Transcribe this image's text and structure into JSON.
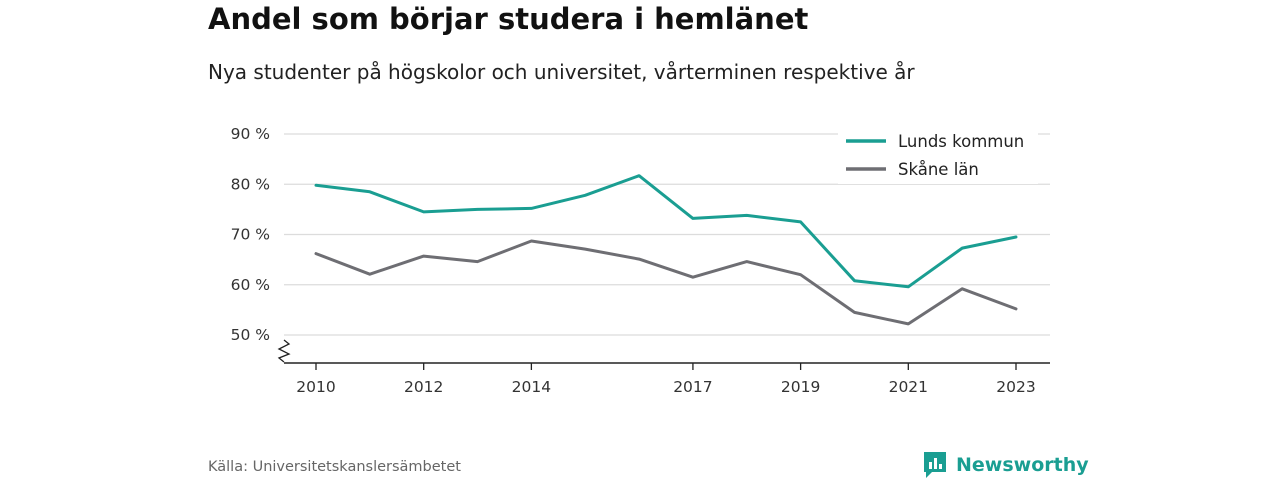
{
  "title": "Andel som börjar studera i hemlänet",
  "subtitle": "Nya studenter på högskolor och universitet, vårterminen respektive år",
  "source": "Källa: Universitetskanslersämbetet",
  "brand": {
    "name": "Newsworthy",
    "icon": "newsworthy-logo-icon",
    "color": "#1a9e92"
  },
  "chart_data": {
    "type": "line",
    "x": [
      2010,
      2011,
      2012,
      2013,
      2014,
      2015,
      2016,
      2017,
      2018,
      2019,
      2020,
      2021,
      2022,
      2023
    ],
    "x_tick_labels": [
      "2010",
      "2012",
      "2014",
      "2017",
      "2019",
      "2021",
      "2023"
    ],
    "y_tick_labels": [
      "90 %",
      "80 %",
      "70 %",
      "60 %",
      "50 %"
    ],
    "y_ticks": [
      90,
      80,
      70,
      60,
      50
    ],
    "ylim": [
      50,
      90
    ],
    "y_axis_break": true,
    "grid": true,
    "legend_position": "top-right",
    "series": [
      {
        "name": "Lunds kommun",
        "color": "#1a9e92",
        "values": [
          79.8,
          78.5,
          74.5,
          75.0,
          75.2,
          77.8,
          81.7,
          73.2,
          73.8,
          72.5,
          60.8,
          59.6,
          67.3,
          69.5
        ]
      },
      {
        "name": "Skåne län",
        "color": "#6e6e73",
        "values": [
          66.2,
          62.1,
          65.7,
          64.6,
          68.7,
          67.1,
          65.1,
          61.5,
          64.6,
          62.0,
          54.5,
          52.2,
          59.2,
          55.2
        ]
      }
    ]
  }
}
